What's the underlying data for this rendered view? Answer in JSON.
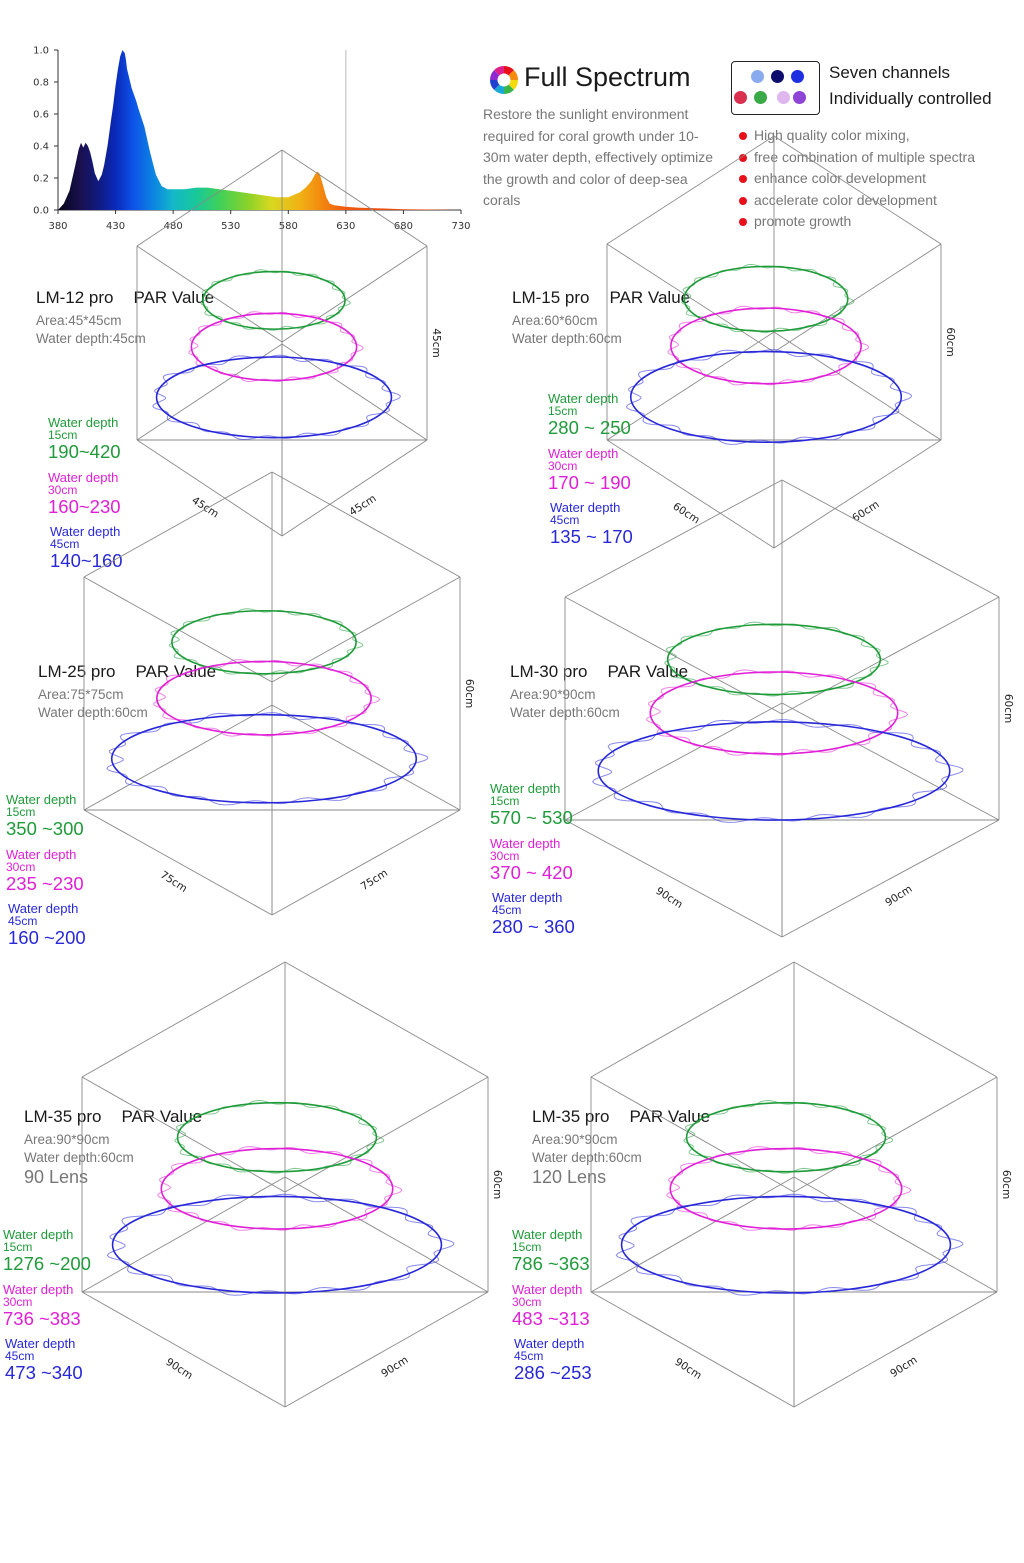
{
  "spectrum": {
    "title": "Full Spectrum",
    "description": "Restore the sunlight environment required for coral growth under 10-30m water depth, effectively optimize the growth and color of deep-sea corals",
    "channels_line1": "Seven channels",
    "channels_line2": "Individually controlled",
    "channel_colors": [
      "#8aaaf0",
      "#0d0d6e",
      "#1d2fe0",
      "#d8304e",
      "#3aaa48",
      "#dfb6ee",
      "#8e44d6"
    ],
    "features": [
      "High quality color mixing,",
      "free combination of multiple spectra",
      "enhance color development",
      "accelerate color development",
      "promote growth"
    ],
    "bullet_color": "#e8101a"
  },
  "chart_data": [
    {
      "type": "area",
      "title": "",
      "xlabel": "",
      "ylabel": "",
      "x_ticks": [
        "380",
        "430",
        "480",
        "530",
        "580",
        "630",
        "680",
        "730"
      ],
      "y_ticks": [
        "0.0",
        "0.2",
        "0.4",
        "0.6",
        "0.8",
        "1.0"
      ],
      "xlim": [
        380,
        730
      ],
      "ylim": [
        0,
        1
      ],
      "grid": "vertical line at 630",
      "series": [
        {
          "x": [
            380,
            385,
            390,
            395,
            398,
            400,
            402,
            404,
            406,
            408,
            410,
            412,
            415,
            418,
            420,
            423,
            426,
            428,
            430,
            432,
            434,
            436,
            437,
            438,
            439,
            440,
            442,
            444,
            446,
            448,
            450,
            455,
            460,
            465,
            470,
            475,
            480,
            490,
            500,
            510,
            520,
            530,
            540,
            550,
            560,
            570,
            580,
            590,
            595,
            600,
            603,
            605,
            607,
            610,
            613,
            616,
            620,
            630,
            640,
            660,
            680,
            700,
            730
          ],
          "y": [
            0.0,
            0.04,
            0.12,
            0.28,
            0.38,
            0.42,
            0.39,
            0.42,
            0.4,
            0.36,
            0.3,
            0.23,
            0.18,
            0.22,
            0.28,
            0.4,
            0.56,
            0.66,
            0.78,
            0.88,
            0.96,
            1.0,
            0.99,
            0.98,
            0.94,
            0.88,
            0.82,
            0.76,
            0.72,
            0.68,
            0.63,
            0.52,
            0.36,
            0.22,
            0.15,
            0.13,
            0.13,
            0.13,
            0.14,
            0.14,
            0.13,
            0.12,
            0.11,
            0.1,
            0.09,
            0.08,
            0.08,
            0.11,
            0.14,
            0.18,
            0.22,
            0.24,
            0.23,
            0.16,
            0.08,
            0.04,
            0.03,
            0.02,
            0.015,
            0.01,
            0.005,
            0.003,
            0.0
          ]
        }
      ]
    },
    {
      "type": "other",
      "model": "LM-12 pro",
      "par_label": "PAR Value",
      "area": "Area:45*45cm",
      "water_depth": "Water depth:45cm",
      "dim_height": "45cm",
      "dim_left": "45cm",
      "dim_right": "45cm",
      "levels": [
        {
          "label": "Water depth",
          "depth": "15cm",
          "value": "190~420",
          "color": "#1f9b3a"
        },
        {
          "label": "Water depth",
          "depth": "30cm",
          "value": "160~230",
          "color": "#e020d6"
        },
        {
          "label": "Water depth",
          "depth": "45cm",
          "value": "140~160",
          "color": "#2828d8"
        }
      ]
    },
    {
      "type": "other",
      "model": "LM-15 pro",
      "par_label": "PAR Value",
      "area": "Area:60*60cm",
      "water_depth": "Water depth:60cm",
      "dim_height": "60cm",
      "dim_left": "60cm",
      "dim_right": "60cm",
      "levels": [
        {
          "label": "Water depth",
          "depth": "15cm",
          "value": "280 ~ 250",
          "color": "#1f9b3a"
        },
        {
          "label": "Water depth",
          "depth": "30cm",
          "value": "170 ~ 190",
          "color": "#e020d6"
        },
        {
          "label": "Water depth",
          "depth": "45cm",
          "value": "135 ~ 170",
          "color": "#2828d8"
        }
      ]
    },
    {
      "type": "other",
      "model": "LM-25 pro",
      "par_label": "PAR Value",
      "area": "Area:75*75cm",
      "water_depth": "Water depth:60cm",
      "dim_height": "60cm",
      "dim_left": "75cm",
      "dim_right": "75cm",
      "levels": [
        {
          "label": "Water depth",
          "depth": "15cm",
          "value": "350 ~300",
          "color": "#1f9b3a"
        },
        {
          "label": "Water depth",
          "depth": "30cm",
          "value": "235 ~230",
          "color": "#e020d6"
        },
        {
          "label": "Water depth",
          "depth": "45cm",
          "value": "160 ~200",
          "color": "#2828d8"
        }
      ]
    },
    {
      "type": "other",
      "model": "LM-30 pro",
      "par_label": "PAR Value",
      "area": "Area:90*90cm",
      "water_depth": "Water depth:60cm",
      "dim_height": "60cm",
      "dim_left": "90cm",
      "dim_right": "90cm",
      "levels": [
        {
          "label": "Water depth",
          "depth": "15cm",
          "value": "570 ~ 530",
          "color": "#1f9b3a"
        },
        {
          "label": "Water depth",
          "depth": "30cm",
          "value": "370 ~ 420",
          "color": "#e020d6"
        },
        {
          "label": "Water depth",
          "depth": "45cm",
          "value": "280 ~ 360",
          "color": "#2828d8"
        }
      ]
    },
    {
      "type": "other",
      "model": "LM-35 pro",
      "par_label": "PAR Value",
      "area": "Area:90*90cm",
      "water_depth": "Water depth:60cm",
      "lens": "90 Lens",
      "dim_height": "60cm",
      "dim_left": "90cm",
      "dim_right": "90cm",
      "levels": [
        {
          "label": "Water depth",
          "depth": "15cm",
          "value": "1276 ~200",
          "color": "#1f9b3a"
        },
        {
          "label": "Water depth",
          "depth": "30cm",
          "value": "736 ~383",
          "color": "#e020d6"
        },
        {
          "label": "Water depth",
          "depth": "45cm",
          "value": "473 ~340",
          "color": "#2828d8"
        }
      ]
    },
    {
      "type": "other",
      "model": "LM-35 pro",
      "par_label": "PAR Value",
      "area": "Area:90*90cm",
      "water_depth": "Water depth:60cm",
      "lens": "120 Lens",
      "dim_height": "60cm",
      "dim_left": "90cm",
      "dim_right": "90cm",
      "levels": [
        {
          "label": "Water depth",
          "depth": "15cm",
          "value": "786 ~363",
          "color": "#1f9b3a"
        },
        {
          "label": "Water depth",
          "depth": "30cm",
          "value": "483 ~313",
          "color": "#e020d6"
        },
        {
          "label": "Water depth",
          "depth": "45cm",
          "value": "286 ~253",
          "color": "#2828d8"
        }
      ]
    }
  ]
}
